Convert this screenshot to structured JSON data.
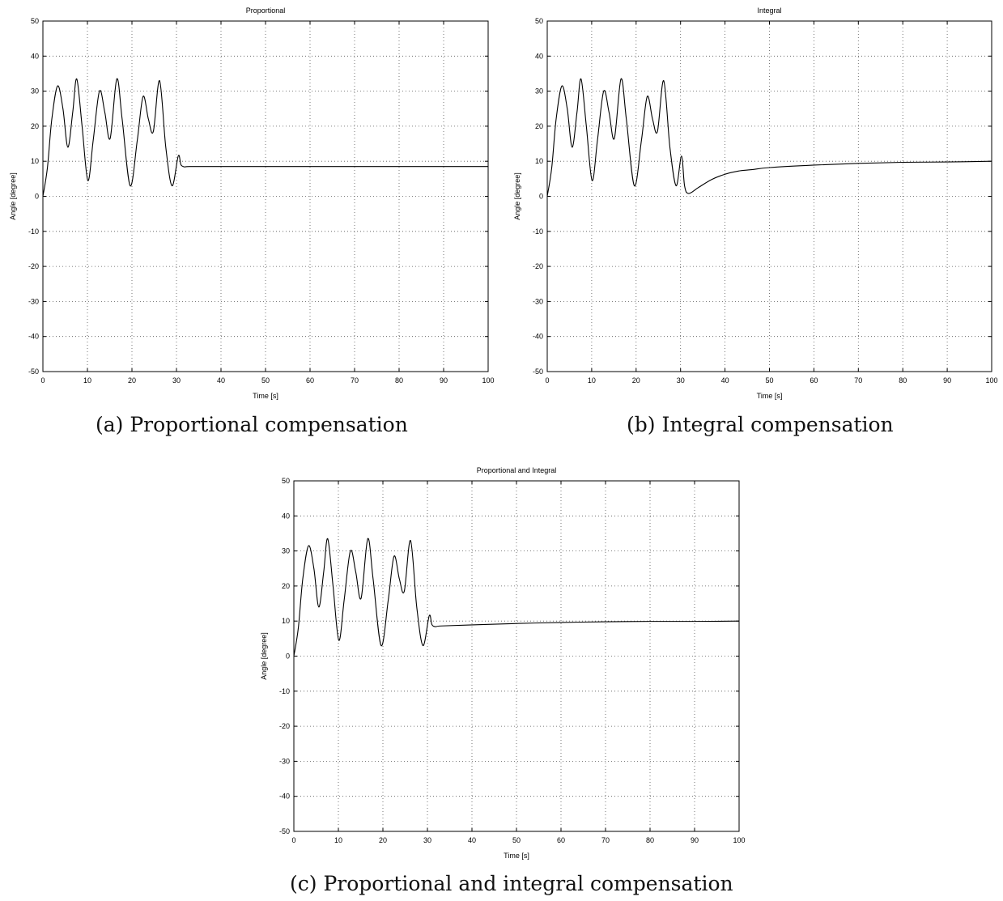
{
  "chart_data": [
    {
      "type": "line",
      "title": "Proportional",
      "xlabel": "Time [s]",
      "ylabel": "Angle [degree]",
      "xlim": [
        0,
        100
      ],
      "ylim": [
        -50,
        50
      ],
      "xticks": [
        0,
        10,
        20,
        30,
        40,
        50,
        60,
        70,
        80,
        90,
        100
      ],
      "yticks": [
        -50,
        -40,
        -30,
        -20,
        -10,
        0,
        10,
        20,
        30,
        40,
        50
      ],
      "grid": true,
      "caption": "(a)  Proportional compensation",
      "series": [
        {
          "x": [
            0,
            1,
            2,
            3.3,
            4.5,
            5.6,
            6.7,
            7.6,
            8.8,
            10.1,
            11.3,
            12.7,
            13.9,
            15.1,
            16.6,
            17.8,
            19.6,
            21.2,
            22.5,
            23.7,
            24.8,
            26.2,
            27.6,
            29.0,
            30.4,
            31.0,
            31.8,
            33,
            40,
            50,
            60,
            70,
            80,
            90,
            100
          ],
          "y": [
            0,
            8,
            22,
            31.5,
            25,
            14,
            24,
            33.5,
            20,
            4.5,
            16,
            30,
            24,
            16.5,
            33.5,
            22,
            3,
            16,
            28.5,
            22,
            18.5,
            33,
            14,
            3,
            11.5,
            9,
            8.4,
            8.5,
            8.5,
            8.5,
            8.5,
            8.5,
            8.5,
            8.5,
            8.5
          ]
        }
      ]
    },
    {
      "type": "line",
      "title": "Integral",
      "xlabel": "Time [s]",
      "ylabel": "Angle [degree]",
      "xlim": [
        0,
        100
      ],
      "ylim": [
        -50,
        50
      ],
      "xticks": [
        0,
        10,
        20,
        30,
        40,
        50,
        60,
        70,
        80,
        90,
        100
      ],
      "yticks": [
        -50,
        -40,
        -30,
        -20,
        -10,
        0,
        10,
        20,
        30,
        40,
        50
      ],
      "grid": true,
      "caption": "(b)  Integral compensation",
      "series": [
        {
          "x": [
            0,
            1,
            2,
            3.3,
            4.5,
            5.6,
            6.7,
            7.6,
            8.8,
            10.1,
            11.3,
            12.7,
            13.9,
            15.1,
            16.6,
            17.8,
            19.6,
            21.2,
            22.5,
            23.7,
            24.8,
            26.2,
            27.6,
            29.0,
            30.2,
            30.9,
            31.8,
            34,
            37,
            40,
            43,
            46,
            50,
            60,
            70,
            80,
            90,
            100
          ],
          "y": [
            0,
            8,
            22,
            31.5,
            25,
            14,
            24,
            33.5,
            20,
            4.5,
            16,
            30,
            24,
            16.5,
            33.5,
            22,
            3,
            16,
            28.5,
            22,
            18.5,
            33,
            14,
            3,
            11.5,
            3,
            0.8,
            2.5,
            4.8,
            6.3,
            7.2,
            7.6,
            8.2,
            8.9,
            9.4,
            9.7,
            9.8,
            10
          ]
        }
      ]
    },
    {
      "type": "line",
      "title": "Proportional and Integral",
      "xlabel": "Time [s]",
      "ylabel": "Angle [degree]",
      "xlim": [
        0,
        100
      ],
      "ylim": [
        -50,
        50
      ],
      "xticks": [
        0,
        10,
        20,
        30,
        40,
        50,
        60,
        70,
        80,
        90,
        100
      ],
      "yticks": [
        -50,
        -40,
        -30,
        -20,
        -10,
        0,
        10,
        20,
        30,
        40,
        50
      ],
      "grid": true,
      "caption": "(c)  Proportional and integral compensation",
      "series": [
        {
          "x": [
            0,
            1,
            2,
            3.3,
            4.5,
            5.6,
            6.7,
            7.6,
            8.8,
            10.1,
            11.3,
            12.7,
            13.9,
            15.1,
            16.6,
            17.8,
            19.6,
            21.2,
            22.5,
            23.7,
            24.8,
            26.2,
            27.6,
            29.0,
            30.4,
            31.0,
            31.8,
            33,
            40,
            50,
            60,
            70,
            80,
            90,
            100
          ],
          "y": [
            0,
            8,
            22,
            31.5,
            25,
            14,
            24,
            33.5,
            20,
            4.5,
            16,
            30,
            24,
            16.5,
            33.5,
            22,
            3,
            16,
            28.5,
            22,
            18.5,
            33,
            14,
            3,
            11.5,
            9,
            8.4,
            8.6,
            8.9,
            9.3,
            9.6,
            9.8,
            9.9,
            9.9,
            10
          ]
        }
      ]
    }
  ]
}
